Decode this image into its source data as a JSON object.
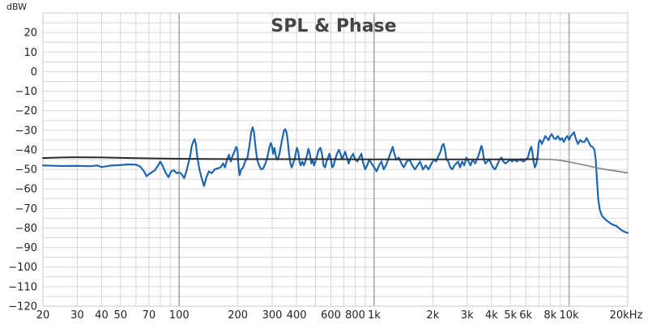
{
  "chart_data": {
    "type": "line",
    "title": "SPL & Phase",
    "ylabel": "dBW",
    "xlabel": "",
    "x_scale": "log",
    "xlim": [
      20,
      20000
    ],
    "ylim": [
      -120,
      30
    ],
    "grid": true,
    "y_ticks": [
      20,
      10,
      0,
      -10,
      -20,
      -30,
      -40,
      -50,
      -60,
      -70,
      -80,
      -90,
      -100,
      -110,
      -120
    ],
    "y_tick_labels": [
      "20",
      "10",
      "0",
      "−10",
      "−20",
      "−30",
      "−40",
      "−50",
      "−60",
      "−70",
      "−80",
      "−90",
      "−100",
      "−110",
      "−120"
    ],
    "x_tick_labels": [
      {
        "value": 20,
        "label": "20"
      },
      {
        "value": 30,
        "label": "30"
      },
      {
        "value": 40,
        "label": "40"
      },
      {
        "value": 50,
        "label": "50"
      },
      {
        "value": 70,
        "label": "70"
      },
      {
        "value": 100,
        "label": "100"
      },
      {
        "value": 200,
        "label": "200"
      },
      {
        "value": 300,
        "label": "300"
      },
      {
        "value": 400,
        "label": "400"
      },
      {
        "value": 600,
        "label": "600"
      },
      {
        "value": 800,
        "label": "800"
      },
      {
        "value": 1000,
        "label": "1k"
      },
      {
        "value": 2000,
        "label": "2k"
      },
      {
        "value": 3000,
        "label": "3k"
      },
      {
        "value": 4000,
        "label": "4k"
      },
      {
        "value": 5000,
        "label": "5k"
      },
      {
        "value": 6000,
        "label": "6k"
      },
      {
        "value": 8000,
        "label": "8k"
      },
      {
        "value": 10000,
        "label": "10k"
      },
      {
        "value": 20000,
        "label": "20kHz"
      }
    ],
    "major_gridlines_x": [
      100,
      1000,
      10000
    ],
    "series": [
      {
        "color": "#1f66b0",
        "points": [
          [
            20,
            -48
          ],
          [
            25,
            -48.3
          ],
          [
            30,
            -48.2
          ],
          [
            35,
            -48.4
          ],
          [
            38,
            -48
          ],
          [
            40,
            -48.8
          ],
          [
            42,
            -48.5
          ],
          [
            45,
            -48
          ],
          [
            50,
            -47.8
          ],
          [
            55,
            -47.5
          ],
          [
            60,
            -47.6
          ],
          [
            63,
            -48.5
          ],
          [
            66,
            -51
          ],
          [
            68,
            -53.5
          ],
          [
            71,
            -52
          ],
          [
            75,
            -50.5
          ],
          [
            78,
            -48
          ],
          [
            80,
            -46
          ],
          [
            82,
            -48
          ],
          [
            85,
            -51.5
          ],
          [
            88,
            -54
          ],
          [
            91,
            -51
          ],
          [
            94,
            -50.5
          ],
          [
            97,
            -52
          ],
          [
            100,
            -51.5
          ],
          [
            103,
            -52.5
          ],
          [
            106,
            -54.5
          ],
          [
            109,
            -51
          ],
          [
            112,
            -46
          ],
          [
            114,
            -43
          ],
          [
            116,
            -38
          ],
          [
            118,
            -36
          ],
          [
            120,
            -34.5
          ],
          [
            122,
            -37.5
          ],
          [
            124,
            -44
          ],
          [
            127,
            -50
          ],
          [
            130,
            -54
          ],
          [
            134,
            -58.5
          ],
          [
            138,
            -54
          ],
          [
            142,
            -51
          ],
          [
            147,
            -52
          ],
          [
            152,
            -50
          ],
          [
            158,
            -49.5
          ],
          [
            163,
            -49
          ],
          [
            168,
            -47
          ],
          [
            172,
            -49
          ],
          [
            176,
            -45
          ],
          [
            180,
            -42.5
          ],
          [
            184,
            -46
          ],
          [
            188,
            -43
          ],
          [
            193,
            -40.5
          ],
          [
            196,
            -38.5
          ],
          [
            199,
            -40
          ],
          [
            201,
            -47
          ],
          [
            204,
            -53
          ],
          [
            208,
            -50
          ],
          [
            213,
            -49
          ],
          [
            218,
            -46
          ],
          [
            224,
            -44
          ],
          [
            230,
            -37
          ],
          [
            234,
            -31
          ],
          [
            238,
            -28.5
          ],
          [
            242,
            -31
          ],
          [
            246,
            -38
          ],
          [
            251,
            -45
          ],
          [
            257,
            -48
          ],
          [
            263,
            -50
          ],
          [
            270,
            -49.5
          ],
          [
            277,
            -47
          ],
          [
            283,
            -44
          ],
          [
            290,
            -39
          ],
          [
            295,
            -36.5
          ],
          [
            299,
            -38
          ],
          [
            303,
            -42
          ],
          [
            308,
            -39
          ],
          [
            314,
            -44
          ],
          [
            320,
            -45
          ],
          [
            327,
            -42
          ],
          [
            334,
            -37
          ],
          [
            340,
            -33
          ],
          [
            345,
            -30
          ],
          [
            350,
            -29.5
          ],
          [
            355,
            -31
          ],
          [
            360,
            -35
          ],
          [
            366,
            -42
          ],
          [
            372,
            -47
          ],
          [
            378,
            -49
          ],
          [
            384,
            -47
          ],
          [
            390,
            -45
          ],
          [
            396,
            -42
          ],
          [
            402,
            -39
          ],
          [
            408,
            -41
          ],
          [
            414,
            -46
          ],
          [
            420,
            -48
          ],
          [
            428,
            -46
          ],
          [
            436,
            -48
          ],
          [
            444,
            -46
          ],
          [
            452,
            -43
          ],
          [
            460,
            -39.5
          ],
          [
            468,
            -42
          ],
          [
            476,
            -47
          ],
          [
            484,
            -45
          ],
          [
            492,
            -48
          ],
          [
            500,
            -46
          ],
          [
            510,
            -43
          ],
          [
            520,
            -40
          ],
          [
            530,
            -39
          ],
          [
            540,
            -42
          ],
          [
            550,
            -48
          ],
          [
            560,
            -49
          ],
          [
            570,
            -46
          ],
          [
            580,
            -44
          ],
          [
            590,
            -42
          ],
          [
            600,
            -45
          ],
          [
            610,
            -49
          ],
          [
            620,
            -48
          ],
          [
            630,
            -45
          ],
          [
            645,
            -42
          ],
          [
            660,
            -40
          ],
          [
            672,
            -42
          ],
          [
            684,
            -45
          ],
          [
            697,
            -43
          ],
          [
            710,
            -41
          ],
          [
            725,
            -44
          ],
          [
            740,
            -47
          ],
          [
            760,
            -44
          ],
          [
            780,
            -42
          ],
          [
            800,
            -45
          ],
          [
            820,
            -46
          ],
          [
            840,
            -44
          ],
          [
            860,
            -42
          ],
          [
            880,
            -47
          ],
          [
            900,
            -50
          ],
          [
            920,
            -48
          ],
          [
            945,
            -45
          ],
          [
            970,
            -47
          ],
          [
            1000,
            -49
          ],
          [
            1030,
            -51
          ],
          [
            1060,
            -48
          ],
          [
            1090,
            -46
          ],
          [
            1120,
            -50
          ],
          [
            1150,
            -48
          ],
          [
            1190,
            -44
          ],
          [
            1220,
            -41
          ],
          [
            1245,
            -38.5
          ],
          [
            1270,
            -42
          ],
          [
            1300,
            -45
          ],
          [
            1340,
            -44
          ],
          [
            1380,
            -47
          ],
          [
            1420,
            -49
          ],
          [
            1470,
            -46
          ],
          [
            1520,
            -45
          ],
          [
            1570,
            -48
          ],
          [
            1620,
            -50
          ],
          [
            1670,
            -48
          ],
          [
            1720,
            -46
          ],
          [
            1780,
            -50
          ],
          [
            1840,
            -48
          ],
          [
            1900,
            -50
          ],
          [
            1970,
            -47
          ],
          [
            2030,
            -45
          ],
          [
            2080,
            -46
          ],
          [
            2140,
            -43
          ],
          [
            2190,
            -41
          ],
          [
            2230,
            -38
          ],
          [
            2270,
            -37
          ],
          [
            2310,
            -40
          ],
          [
            2350,
            -45
          ],
          [
            2400,
            -46
          ],
          [
            2460,
            -49
          ],
          [
            2520,
            -50
          ],
          [
            2580,
            -48
          ],
          [
            2640,
            -47
          ],
          [
            2700,
            -46
          ],
          [
            2760,
            -49
          ],
          [
            2830,
            -46
          ],
          [
            2900,
            -48
          ],
          [
            2970,
            -44
          ],
          [
            3050,
            -46
          ],
          [
            3120,
            -48
          ],
          [
            3200,
            -45
          ],
          [
            3300,
            -47
          ],
          [
            3400,
            -44
          ],
          [
            3480,
            -41
          ],
          [
            3550,
            -38
          ],
          [
            3600,
            -40
          ],
          [
            3660,
            -45
          ],
          [
            3720,
            -47
          ],
          [
            3800,
            -46
          ],
          [
            3900,
            -45
          ],
          [
            3980,
            -47
          ],
          [
            4070,
            -49
          ],
          [
            4170,
            -50
          ],
          [
            4270,
            -48
          ],
          [
            4400,
            -45
          ],
          [
            4500,
            -44
          ],
          [
            4600,
            -46
          ],
          [
            4720,
            -47
          ],
          [
            4850,
            -46
          ],
          [
            4980,
            -45
          ],
          [
            5100,
            -46
          ],
          [
            5250,
            -45
          ],
          [
            5400,
            -46
          ],
          [
            5550,
            -45
          ],
          [
            5700,
            -45.5
          ],
          [
            5850,
            -46
          ],
          [
            6000,
            -45
          ],
          [
            6150,
            -44
          ],
          [
            6300,
            -40
          ],
          [
            6400,
            -38.5
          ],
          [
            6480,
            -41
          ],
          [
            6570,
            -46
          ],
          [
            6680,
            -49
          ],
          [
            6800,
            -47
          ],
          [
            6900,
            -43
          ],
          [
            7000,
            -36
          ],
          [
            7100,
            -35
          ],
          [
            7250,
            -37
          ],
          [
            7400,
            -35
          ],
          [
            7550,
            -33
          ],
          [
            7700,
            -34
          ],
          [
            7850,
            -35
          ],
          [
            8000,
            -33
          ],
          [
            8150,
            -32
          ],
          [
            8350,
            -34
          ],
          [
            8550,
            -34.5
          ],
          [
            8750,
            -33
          ],
          [
            9000,
            -35
          ],
          [
            9200,
            -34
          ],
          [
            9400,
            -36
          ],
          [
            9600,
            -34
          ],
          [
            9800,
            -33
          ],
          [
            10000,
            -35
          ],
          [
            10200,
            -33
          ],
          [
            10400,
            -32
          ],
          [
            10600,
            -31
          ],
          [
            10800,
            -34
          ],
          [
            11100,
            -37
          ],
          [
            11400,
            -35
          ],
          [
            11700,
            -36
          ],
          [
            12000,
            -36
          ],
          [
            12300,
            -34
          ],
          [
            12600,
            -36
          ],
          [
            12900,
            -38
          ],
          [
            13200,
            -38.5
          ],
          [
            13500,
            -40
          ],
          [
            13700,
            -45
          ],
          [
            13900,
            -55
          ],
          [
            14100,
            -65
          ],
          [
            14400,
            -71
          ],
          [
            14800,
            -74
          ],
          [
            15500,
            -76
          ],
          [
            16500,
            -78
          ],
          [
            17500,
            -79
          ],
          [
            18500,
            -81
          ],
          [
            19300,
            -82
          ],
          [
            20000,
            -82.5
          ]
        ]
      },
      {
        "color": "#2b2b2b",
        "points": [
          [
            20,
            -44.2
          ],
          [
            25,
            -43.9
          ],
          [
            30,
            -43.8
          ],
          [
            40,
            -43.9
          ],
          [
            50,
            -44.1
          ],
          [
            70,
            -44.4
          ],
          [
            100,
            -44.6
          ],
          [
            200,
            -44.8
          ],
          [
            300,
            -44.8
          ],
          [
            500,
            -44.8
          ],
          [
            1000,
            -44.9
          ],
          [
            2000,
            -44.9
          ],
          [
            3000,
            -44.9
          ],
          [
            5000,
            -44.9
          ],
          [
            7000,
            -44.8
          ]
        ]
      },
      {
        "color": "#808080",
        "points": [
          [
            7000,
            -44.8
          ],
          [
            8000,
            -44.9
          ],
          [
            9000,
            -45.4
          ],
          [
            10000,
            -46.2
          ],
          [
            12000,
            -47.8
          ],
          [
            14000,
            -49.3
          ],
          [
            16000,
            -50.3
          ],
          [
            18000,
            -51.1
          ],
          [
            20000,
            -51.8
          ]
        ]
      }
    ]
  }
}
